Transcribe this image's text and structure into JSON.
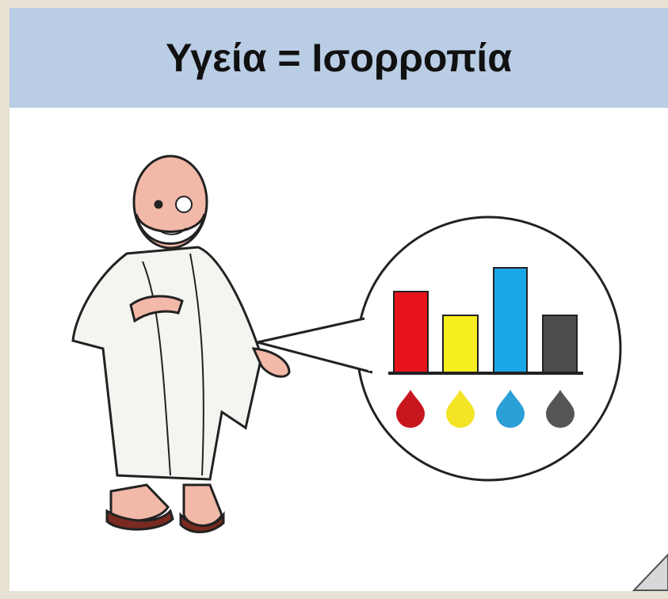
{
  "header": {
    "title": "Υγεία = Ισορροπία"
  }
}
